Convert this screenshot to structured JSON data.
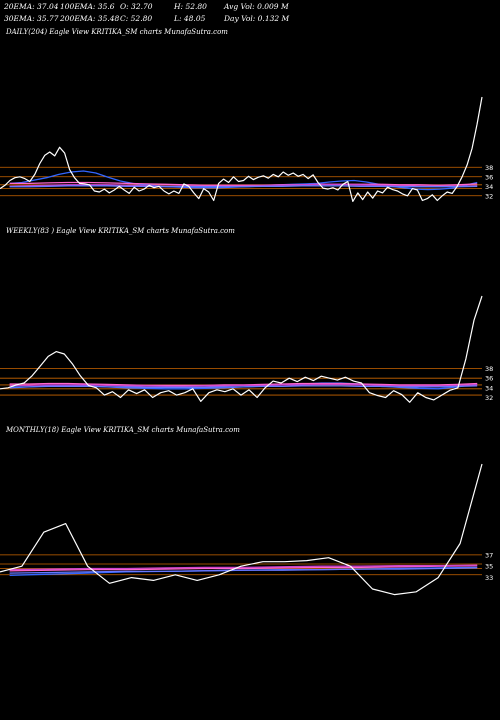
{
  "header": {
    "row1": {
      "ema20": "20EMA: 37.04",
      "ema100": "100EMA: 35.6",
      "open": "O: 32.70",
      "high": "H: 52.80",
      "avg_vol": "Avg Vol: 0.009  M"
    },
    "row2": {
      "ema30": "30EMA: 35.77",
      "ema200": "200EMA: 35.48",
      "close": "C: 52.80",
      "low": "L: 48.05",
      "day_vol": "Day Vol: 0.132  M"
    }
  },
  "chart_data": [
    {
      "type": "line",
      "title": "DAILY(204) Eagle  View  KRITIKA_SM charts MunafaSutra.com",
      "ylim": [
        29,
        53
      ],
      "tick_labels": [
        "38",
        "36",
        "34",
        "32"
      ],
      "hlines": [
        38,
        36,
        34.3,
        33.5,
        32
      ],
      "line_colors": {
        "price": "#ffffff",
        "ema_short": "#3366ff",
        "ema_long": "#cc44cc",
        "ema_mid": "#ff66cc",
        "ema_slow": "#6677ff",
        "level": "#cc6600"
      },
      "series": [
        {
          "key": "price",
          "color": "#ffffff",
          "values": [
            33.5,
            34.2,
            35.2,
            35.8,
            36.0,
            35.6,
            35.0,
            36.5,
            38.8,
            40.5,
            41.2,
            40.4,
            42.2,
            41.0,
            37.5,
            35.8,
            34.6,
            34.5,
            34.3,
            33.0,
            32.8,
            33.4,
            32.6,
            33.2,
            34.0,
            33.2,
            32.5,
            33.8,
            33.0,
            33.4,
            34.2,
            33.7,
            34.0,
            33.0,
            32.4,
            33.0,
            32.5,
            34.5,
            34.0,
            32.6,
            31.4,
            33.5,
            32.8,
            31.0,
            34.6,
            35.5,
            34.8,
            36.0,
            35.0,
            35.2,
            36.1,
            35.4,
            35.9,
            36.2,
            35.7,
            36.5,
            36.0,
            37.0,
            36.3,
            36.8,
            36.1,
            36.5,
            35.6,
            36.4,
            34.8,
            33.6,
            33.4,
            33.7,
            33.2,
            34.4,
            35.0,
            30.8,
            32.6,
            31.2,
            32.8,
            31.5,
            33.0,
            32.6,
            33.8,
            33.3,
            33.0,
            32.4,
            32.0,
            33.5,
            33.2,
            31.0,
            31.4,
            32.2,
            31.0,
            32.0,
            32.8,
            32.5,
            34.0,
            36.0,
            38.5,
            42.0,
            47.0,
            52.8
          ]
        },
        {
          "key": "ema_short",
          "color": "#3366ff",
          "values": [
            34.6,
            34.8,
            35.3,
            35.8,
            36.5,
            37.0,
            37.2,
            36.8,
            35.9,
            35.1,
            34.6,
            34.3,
            34.1,
            33.9,
            33.8,
            33.7,
            33.7,
            33.7,
            33.8,
            33.9,
            34.0,
            34.2,
            34.3,
            34.4,
            34.5,
            34.6,
            34.9,
            35.1,
            35.2,
            34.9,
            34.4,
            34.0,
            33.7,
            33.4,
            33.3,
            33.4,
            33.6,
            34.2,
            34.8
          ]
        },
        {
          "key": "ema_mid",
          "color": "#ff66cc",
          "values": [
            34.6,
            34.6,
            34.7,
            34.8,
            34.8,
            34.7,
            34.6,
            34.5,
            34.4,
            34.3,
            34.2,
            34.2,
            34.2,
            34.2,
            34.3,
            34.3,
            34.4,
            34.4,
            34.4,
            34.4,
            34.3,
            34.3,
            34.2,
            34.3,
            34.5
          ]
        },
        {
          "key": "ema_long",
          "color": "#cc44cc",
          "values": [
            34.0,
            34.1,
            34.2,
            34.3,
            34.3,
            34.3,
            34.2,
            34.1,
            34.0,
            34.0,
            34.0,
            34.0,
            34.0,
            34.1,
            34.2,
            34.3,
            34.4,
            34.4,
            34.3,
            34.2,
            34.1,
            34.0,
            34.0,
            34.0,
            34.1
          ]
        },
        {
          "key": "ema_slow",
          "color": "#6677ff",
          "values": [
            33.9,
            33.9,
            34.0,
            34.1,
            34.1,
            34.1,
            34.0,
            34.0,
            33.9,
            33.9,
            33.9,
            33.9,
            33.9,
            34.0,
            34.0,
            34.1,
            34.1,
            34.1,
            34.0,
            34.0,
            33.9,
            33.9,
            33.9,
            33.9,
            34.0
          ]
        }
      ]
    },
    {
      "type": "line",
      "title": "WEEKLY(83                              ) Eagle  View  KRITIKA_SM charts MunafaSutra.com",
      "ylim": [
        29,
        53
      ],
      "tick_labels": [
        "38",
        "36",
        "34",
        "32"
      ],
      "hlines": [
        38,
        36,
        34.6,
        33.8,
        32.5
      ],
      "line_colors": {
        "price": "#ffffff",
        "ema_short": "#3366ff",
        "ema_long": "#cc44cc",
        "ema_mid": "#ff66cc",
        "ema_slow": "#6677ff",
        "level": "#cc6600"
      },
      "series": [
        {
          "key": "price",
          "color": "#ffffff",
          "values": [
            33.8,
            34.0,
            34.6,
            35.0,
            36.5,
            38.5,
            40.5,
            41.5,
            41.0,
            39.0,
            36.5,
            34.5,
            34.0,
            32.5,
            33.2,
            32.0,
            33.6,
            32.8,
            33.6,
            32.0,
            33.0,
            33.4,
            32.5,
            33.0,
            33.8,
            31.2,
            33.0,
            33.6,
            33.2,
            33.8,
            32.5,
            33.6,
            32.0,
            34.0,
            35.4,
            35.0,
            36.0,
            35.3,
            36.2,
            35.5,
            36.4,
            36.0,
            35.6,
            36.2,
            35.4,
            35.0,
            33.0,
            32.4,
            32.0,
            33.4,
            32.6,
            31.0,
            33.0,
            32.0,
            31.5,
            32.5,
            33.5,
            34.0,
            40.0,
            48.0,
            53.0
          ]
        },
        {
          "key": "ema_short",
          "color": "#3366ff",
          "values": [
            34.0,
            34.2,
            34.4,
            34.5,
            34.4,
            34.2,
            34.0,
            33.9,
            33.8,
            33.8,
            33.9,
            34.0,
            34.2,
            34.4,
            34.6,
            34.8,
            35.0,
            35.0,
            34.8,
            34.4,
            34.1,
            33.9,
            33.8,
            34.2,
            34.8
          ]
        },
        {
          "key": "ema_mid",
          "color": "#ff66cc",
          "values": [
            34.8,
            34.8,
            34.9,
            34.9,
            34.8,
            34.7,
            34.6,
            34.5,
            34.5,
            34.5,
            34.5,
            34.6,
            34.6,
            34.7,
            34.8,
            34.9,
            34.9,
            34.9,
            34.8,
            34.7,
            34.6,
            34.6,
            34.6,
            34.7,
            34.9
          ]
        },
        {
          "key": "ema_long",
          "color": "#cc44cc",
          "values": [
            34.5,
            34.5,
            34.6,
            34.6,
            34.6,
            34.5,
            34.4,
            34.4,
            34.3,
            34.3,
            34.4,
            34.4,
            34.5,
            34.5,
            34.6,
            34.6,
            34.7,
            34.7,
            34.6,
            34.5,
            34.4,
            34.4,
            34.4,
            34.5,
            34.6
          ]
        },
        {
          "key": "ema_slow",
          "color": "#6677ff",
          "values": [
            34.2,
            34.2,
            34.3,
            34.3,
            34.3,
            34.2,
            34.2,
            34.1,
            34.1,
            34.1,
            34.1,
            34.2,
            34.2,
            34.3,
            34.3,
            34.4,
            34.4,
            34.4,
            34.3,
            34.3,
            34.2,
            34.2,
            34.2,
            34.3,
            34.4
          ]
        }
      ]
    },
    {
      "type": "line",
      "title": "MONTHLY(18) Eagle  View  KRITIKA_SM charts MunafaSutra.com",
      "ylim": [
        28,
        53
      ],
      "tick_labels": [
        "37",
        "35",
        "33"
      ],
      "hlines": [
        37,
        35.4,
        34.6,
        33.5
      ],
      "line_colors": {
        "price": "#ffffff",
        "ema_short": "#3366ff",
        "ema_long": "#cc44cc",
        "ema_mid": "#ff66cc",
        "ema_slow": "#6677ff",
        "level": "#cc6600"
      },
      "series": [
        {
          "key": "price",
          "color": "#ffffff",
          "values": [
            34.0,
            35.0,
            41.0,
            42.5,
            35.0,
            32.0,
            33.0,
            32.5,
            33.5,
            32.5,
            33.5,
            35.0,
            35.8,
            35.8,
            36.0,
            36.5,
            35.0,
            31.0,
            30.0,
            30.5,
            33.0,
            39.0,
            53.0
          ]
        },
        {
          "key": "ema_short",
          "color": "#3366ff",
          "values": [
            33.4,
            33.6,
            33.8,
            34.0,
            34.1,
            34.2,
            34.3,
            34.4,
            34.4,
            34.5,
            34.6,
            34.7,
            34.8
          ]
        },
        {
          "key": "ema_mid",
          "color": "#ff66cc",
          "values": [
            34.2,
            34.3,
            34.4,
            34.4,
            34.5,
            34.6,
            34.6,
            34.7,
            34.8,
            34.8,
            34.9,
            35.0,
            35.1
          ]
        },
        {
          "key": "ema_long",
          "color": "#cc44cc",
          "values": [
            34.4,
            34.5,
            34.6,
            34.6,
            34.7,
            34.8,
            34.8,
            34.9,
            35.0,
            35.0,
            35.1,
            35.1,
            35.2
          ]
        },
        {
          "key": "ema_slow",
          "color": "#6677ff",
          "values": [
            33.8,
            33.9,
            34.0,
            34.1,
            34.1,
            34.2,
            34.3,
            34.3,
            34.4,
            34.5,
            34.5,
            34.6,
            34.7
          ]
        }
      ]
    }
  ]
}
